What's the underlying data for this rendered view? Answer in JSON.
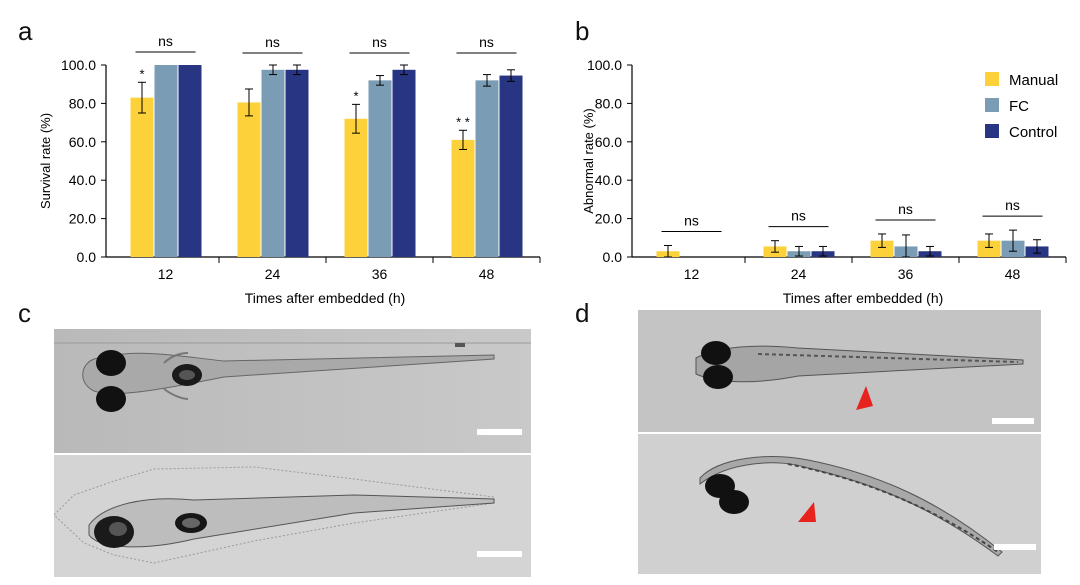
{
  "panels": {
    "a": "a",
    "b": "b",
    "c": "c",
    "d": "d"
  },
  "colors": {
    "manual": "#FDD13A",
    "fc": "#7A9DB5",
    "control": "#273582"
  },
  "chart_data": [
    {
      "type": "bar",
      "panel": "a",
      "categories": [
        "12",
        "24",
        "36",
        "48"
      ],
      "xlabel": "Times after embedded (h)",
      "ylabel": "Survival rate (%)",
      "ylim": [
        0,
        100
      ],
      "yticks": [
        "0.0",
        "20.0",
        "40.0",
        "60.0",
        "80.0",
        "100.0"
      ],
      "series": [
        {
          "key": "manual",
          "values": [
            83,
            80.5,
            72,
            61
          ],
          "errors": [
            8,
            7,
            7.5,
            5
          ]
        },
        {
          "key": "fc",
          "values": [
            100,
            97.5,
            92,
            92
          ],
          "errors": [
            0,
            2.5,
            2.5,
            3
          ]
        },
        {
          "key": "control",
          "values": [
            100,
            97.5,
            97.5,
            94.5
          ],
          "errors": [
            0,
            2.5,
            2.5,
            3
          ]
        }
      ],
      "stars": [
        "*",
        "",
        "*",
        "* *"
      ],
      "ns_labels": [
        "ns",
        "ns",
        "ns",
        "ns"
      ],
      "grid": false
    },
    {
      "type": "bar",
      "panel": "b",
      "categories": [
        "12",
        "24",
        "36",
        "48"
      ],
      "xlabel": "Times after embedded (h)",
      "ylabel": "Abnormal rate (%)",
      "ylim": [
        0,
        100
      ],
      "yticks": [
        "0.0",
        "20.0",
        "40.0",
        "60.0",
        "80.0",
        "100.0"
      ],
      "series": [
        {
          "name": "Manual",
          "key": "manual",
          "values": [
            3,
            5.5,
            8.5,
            8.5
          ],
          "errors": [
            3,
            3,
            3.5,
            3.5
          ]
        },
        {
          "name": "FC",
          "key": "fc",
          "values": [
            0,
            3,
            5.5,
            8.5
          ],
          "errors": [
            0,
            2.5,
            6,
            5.5
          ]
        },
        {
          "name": "Control",
          "key": "control",
          "values": [
            0,
            3,
            3,
            5.5
          ],
          "errors": [
            0,
            2.5,
            2.5,
            3.5
          ]
        }
      ],
      "ns_labels": [
        "ns",
        "ns",
        "ns",
        "ns"
      ],
      "legend": "top-right",
      "grid": false
    }
  ]
}
